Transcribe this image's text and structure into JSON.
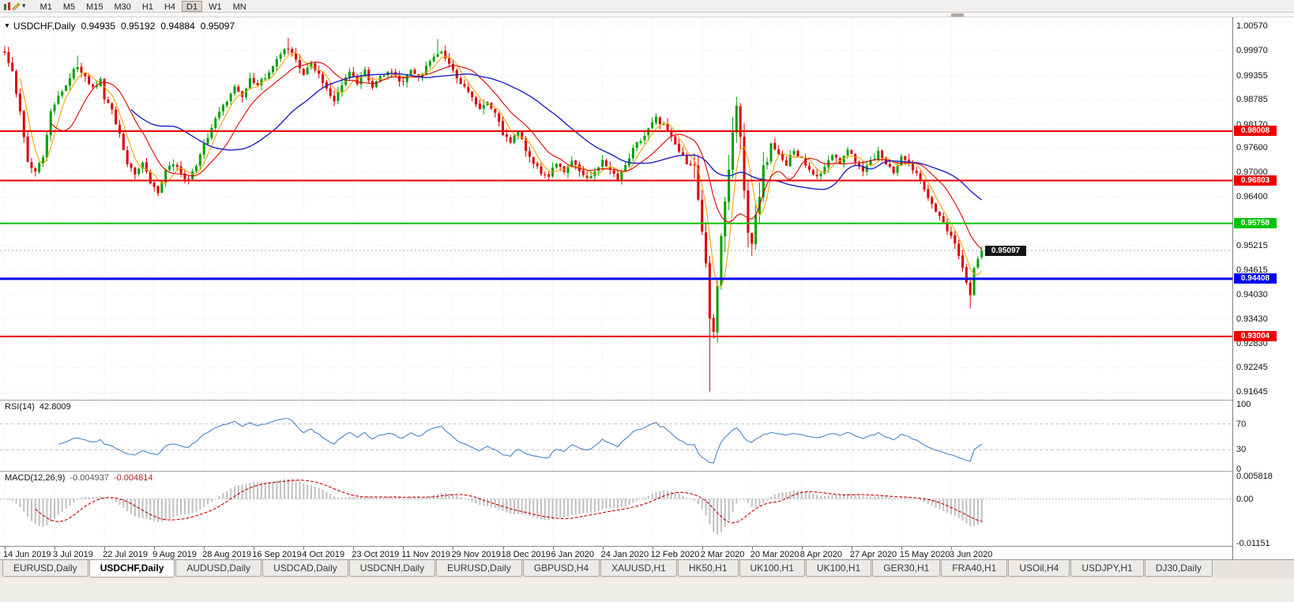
{
  "toolbar": {
    "timeframes": [
      "M1",
      "M5",
      "M15",
      "M30",
      "H1",
      "H4",
      "D1",
      "W1",
      "MN"
    ],
    "active_timeframe": "D1"
  },
  "chart": {
    "header": {
      "collapse_glyph": "▼",
      "symbol": "USDCHF,Daily",
      "open": "0.94935",
      "high": "0.95192",
      "low": "0.94884",
      "close": "0.95097"
    },
    "price_axis_labels": [
      "1.00570",
      "0.99970",
      "0.99355",
      "0.98785",
      "0.98170",
      "0.97600",
      "0.97000",
      "0.96400",
      "0.95215",
      "0.94615",
      "0.94030",
      "0.93430",
      "0.92830",
      "0.92245",
      "0.91645"
    ],
    "current_price_badge": "0.95097"
  },
  "rsi": {
    "title": "RSI(14)",
    "value": "42.8009",
    "axis_labels": [
      "100",
      "70",
      "30",
      "0"
    ]
  },
  "macd": {
    "title": "MACD(12,26,9)",
    "value_main": "-0.004937",
    "value_signal": "-0.004814",
    "axis_labels": [
      "0.005818",
      "0.00",
      "-0.01151"
    ]
  },
  "tabs": {
    "items": [
      "EURUSD,Daily",
      "USDCHF,Daily",
      "AUDUSD,Daily",
      "USDCAD,Daily",
      "USDCNH,Daily",
      "EURUSD,Daily",
      "GBPUSD,H4",
      "XAUUSD,H1",
      "HK50,H1",
      "UK100,H1",
      "UK100,H1",
      "GER30,H1",
      "FRA40,H1",
      "USOil,H4",
      "USDJPY,H1",
      "DJ30,Daily"
    ],
    "active_index": 1
  },
  "chart_data": {
    "type": "candlestick",
    "symbol": "USDCHF",
    "timeframe": "Daily",
    "title": "USDCHF,Daily",
    "x_labels": [
      "14 Jun 2019",
      "3 Jul 2019",
      "22 Jul 2019",
      "9 Aug 2019",
      "28 Aug 2019",
      "16 Sep 2019",
      "4 Oct 2019",
      "23 Oct 2019",
      "11 Nov 2019",
      "29 Nov 2019",
      "18 Dec 2019",
      "6 Jan 2020",
      "24 Jan 2020",
      "12 Feb 2020",
      "2 Mar 2020",
      "20 Mar 2020",
      "8 Apr 2020",
      "27 Apr 2020",
      "15 May 2020",
      "3 Jun 2020"
    ],
    "bars_per_label": 13,
    "candle_count": 256,
    "price_top": 1.0078,
    "price_bottom": 0.9146,
    "up_color": "#00A000",
    "down_color": "#DC0000",
    "last_candle": {
      "open": 0.94935,
      "high": 0.95192,
      "low": 0.94884,
      "close": 0.95097
    },
    "current_price": 0.95097,
    "close_anchors": [
      [
        0,
        0.9992
      ],
      [
        2,
        0.995
      ],
      [
        4,
        0.9845
      ],
      [
        6,
        0.973
      ],
      [
        8,
        0.97
      ],
      [
        10,
        0.9742
      ],
      [
        12,
        0.985
      ],
      [
        14,
        0.989
      ],
      [
        16,
        0.9915
      ],
      [
        18,
        0.995
      ],
      [
        19,
        0.9962
      ],
      [
        21,
        0.993
      ],
      [
        23,
        0.9905
      ],
      [
        25,
        0.9925
      ],
      [
        26,
        0.988
      ],
      [
        28,
        0.9855
      ],
      [
        30,
        0.979
      ],
      [
        32,
        0.972
      ],
      [
        34,
        0.97
      ],
      [
        36,
        0.9722
      ],
      [
        38,
        0.9672
      ],
      [
        40,
        0.9655
      ],
      [
        42,
        0.97
      ],
      [
        44,
        0.9725
      ],
      [
        46,
        0.9692
      ],
      [
        48,
        0.968
      ],
      [
        50,
        0.9722
      ],
      [
        52,
        0.977
      ],
      [
        54,
        0.9808
      ],
      [
        56,
        0.9845
      ],
      [
        58,
        0.9875
      ],
      [
        60,
        0.9905
      ],
      [
        62,
        0.988
      ],
      [
        64,
        0.9928
      ],
      [
        66,
        0.991
      ],
      [
        68,
        0.9935
      ],
      [
        70,
        0.9962
      ],
      [
        72,
        0.999
      ],
      [
        74,
        1.0002
      ],
      [
        76,
        0.9972
      ],
      [
        78,
        0.994
      ],
      [
        80,
        0.9965
      ],
      [
        82,
        0.9935
      ],
      [
        84,
        0.99
      ],
      [
        86,
        0.9875
      ],
      [
        88,
        0.9915
      ],
      [
        90,
        0.9945
      ],
      [
        92,
        0.992
      ],
      [
        94,
        0.9948
      ],
      [
        96,
        0.9912
      ],
      [
        98,
        0.993
      ],
      [
        100,
        0.995
      ],
      [
        102,
        0.9932
      ],
      [
        104,
        0.992
      ],
      [
        106,
        0.9945
      ],
      [
        108,
        0.993
      ],
      [
        110,
        0.9955
      ],
      [
        112,
        0.998
      ],
      [
        114,
        0.9998
      ],
      [
        116,
        0.9965
      ],
      [
        118,
        0.9932
      ],
      [
        120,
        0.9905
      ],
      [
        122,
        0.988
      ],
      [
        124,
        0.986
      ],
      [
        126,
        0.9875
      ],
      [
        128,
        0.9842
      ],
      [
        130,
        0.9795
      ],
      [
        132,
        0.9778
      ],
      [
        134,
        0.9795
      ],
      [
        136,
        0.9758
      ],
      [
        138,
        0.9725
      ],
      [
        140,
        0.9702
      ],
      [
        142,
        0.969
      ],
      [
        144,
        0.9725
      ],
      [
        146,
        0.9702
      ],
      [
        148,
        0.9728
      ],
      [
        150,
        0.9708
      ],
      [
        152,
        0.9685
      ],
      [
        154,
        0.9702
      ],
      [
        156,
        0.9725
      ],
      [
        158,
        0.9702
      ],
      [
        160,
        0.9688
      ],
      [
        162,
        0.9722
      ],
      [
        164,
        0.9755
      ],
      [
        166,
        0.9782
      ],
      [
        168,
        0.9805
      ],
      [
        170,
        0.9832
      ],
      [
        172,
        0.9815
      ],
      [
        174,
        0.9788
      ],
      [
        176,
        0.9755
      ],
      [
        178,
        0.9725
      ],
      [
        180,
        0.9702
      ],
      [
        181,
        0.9645
      ],
      [
        182,
        0.9565
      ],
      [
        183,
        0.9465
      ],
      [
        184,
        0.9335
      ],
      [
        185,
        0.9295
      ],
      [
        186,
        0.9425
      ],
      [
        187,
        0.9535
      ],
      [
        188,
        0.9618
      ],
      [
        189,
        0.9705
      ],
      [
        190,
        0.9802
      ],
      [
        191,
        0.986
      ],
      [
        192,
        0.9775
      ],
      [
        193,
        0.9655
      ],
      [
        194,
        0.9555
      ],
      [
        195,
        0.9525
      ],
      [
        196,
        0.9588
      ],
      [
        197,
        0.9652
      ],
      [
        198,
        0.9705
      ],
      [
        199,
        0.9735
      ],
      [
        200,
        0.9768
      ],
      [
        202,
        0.9745
      ],
      [
        204,
        0.9722
      ],
      [
        206,
        0.9752
      ],
      [
        208,
        0.9732
      ],
      [
        210,
        0.9702
      ],
      [
        212,
        0.9685
      ],
      [
        214,
        0.9715
      ],
      [
        216,
        0.9745
      ],
      [
        218,
        0.9725
      ],
      [
        220,
        0.9752
      ],
      [
        222,
        0.9728
      ],
      [
        224,
        0.9705
      ],
      [
        226,
        0.9728
      ],
      [
        228,
        0.975
      ],
      [
        230,
        0.9725
      ],
      [
        232,
        0.9702
      ],
      [
        234,
        0.9738
      ],
      [
        236,
        0.9718
      ],
      [
        238,
        0.97
      ],
      [
        240,
        0.9662
      ],
      [
        242,
        0.9625
      ],
      [
        244,
        0.9592
      ],
      [
        246,
        0.956
      ],
      [
        248,
        0.953
      ],
      [
        250,
        0.947
      ],
      [
        251,
        0.9432
      ],
      [
        252,
        0.9395
      ],
      [
        253,
        0.9465
      ],
      [
        254,
        0.9493
      ],
      [
        255,
        0.95097
      ]
    ],
    "overrides": {
      "0": {
        "open": 0.9995,
        "high": 1.0008
      },
      "19": {
        "high": 0.9985
      },
      "74": {
        "high": 1.0028
      },
      "113": {
        "high": 1.0025
      },
      "184": {
        "low": 0.9166
      },
      "191": {
        "high": 0.9885
      },
      "252": {
        "low": 0.9368
      },
      "255": {
        "open": 0.94935,
        "high": 0.95192,
        "low": 0.94884,
        "close": 0.95097
      }
    },
    "hlines": [
      {
        "price": 0.98008,
        "label": "0.98008",
        "color": "#EE0000",
        "thickness": 2
      },
      {
        "price": 0.96803,
        "label": "0.96803",
        "color": "#EE0000",
        "thickness": 2
      },
      {
        "price": 0.95758,
        "label": "0.95758",
        "color": "#00C400",
        "thickness": 2
      },
      {
        "price": 0.94408,
        "label": "0.94408",
        "color": "#0000EE",
        "thickness": 3
      },
      {
        "price": 0.93004,
        "label": "0.93004",
        "color": "#EE0000",
        "thickness": 2
      }
    ],
    "moving_averages": [
      {
        "name": "ma-fast",
        "period": 5,
        "color": "#F5A300"
      },
      {
        "name": "ma-medium",
        "period": 13,
        "color": "#E00000"
      },
      {
        "name": "ma-slow",
        "period": 34,
        "color": "#2020C8"
      }
    ],
    "rsi": {
      "period": 14,
      "color": "#4A86C8",
      "levels": [
        70,
        30
      ],
      "range": [
        0,
        100
      ],
      "current": 42.8009
    },
    "macd": {
      "fast": 12,
      "slow": 26,
      "signal_period": 9,
      "axis_max": 0.005818,
      "axis_min": -0.01151,
      "hist_color": "#C0C0C0",
      "signal_color": "#CC0000",
      "current_main": -0.004937,
      "current_signal": -0.004814
    }
  }
}
